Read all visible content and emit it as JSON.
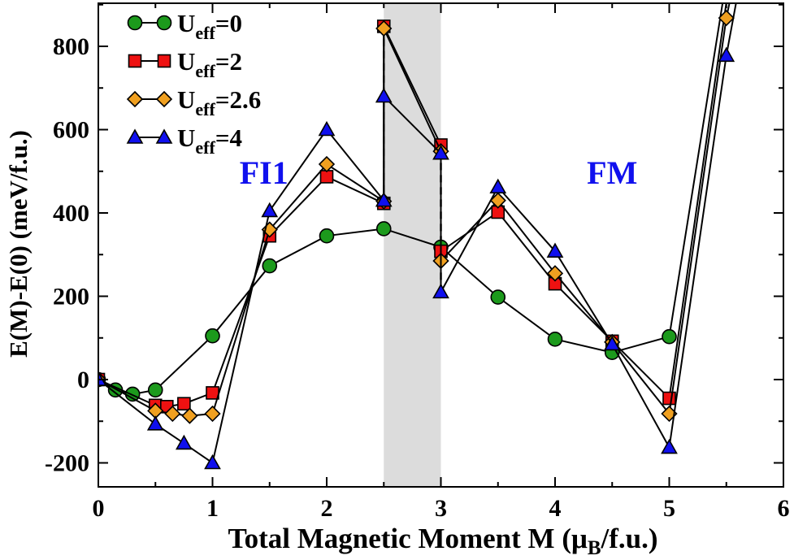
{
  "chart_data": {
    "type": "line",
    "xlabel_main": "Total Magnetic Moment M (μ",
    "xlabel_sub": "B",
    "xlabel_tail": "/f.u.)",
    "ylabel": "E(M)-E(0) (meV/f.u.)",
    "xlim": [
      0,
      6
    ],
    "ylim": [
      -250,
      900
    ],
    "xticks": [
      "0",
      "1",
      "2",
      "3",
      "4",
      "5",
      "6"
    ],
    "yticks": [
      "-200",
      "0",
      "200",
      "400",
      "600",
      "800"
    ],
    "shaded_band": [
      2.5,
      3.0
    ],
    "dashed_lines": [
      {
        "x": 2.5,
        "y": [
          420,
          845
        ]
      },
      {
        "x": 3.0,
        "y": [
          210,
          565
        ]
      }
    ],
    "annotations": [
      {
        "text": "FI1",
        "x": 1.45,
        "y": 470,
        "color": "#1010ee"
      },
      {
        "text": "FM",
        "x": 4.5,
        "y": 470,
        "color": "#1010ee"
      }
    ],
    "series": [
      {
        "legend_main": "U",
        "legend_sub": "eff",
        "legend_tail": "=0",
        "marker": "circle",
        "color": "#1c9a1c",
        "points": [
          [
            0,
            0
          ],
          [
            0.15,
            -25
          ],
          [
            0.3,
            -35
          ],
          [
            0.5,
            -25
          ],
          [
            1,
            105
          ],
          [
            1.5,
            273
          ],
          [
            2,
            345
          ],
          [
            2.5,
            362
          ],
          [
            3,
            318
          ],
          [
            3.5,
            198
          ],
          [
            4,
            97
          ],
          [
            4.5,
            65
          ],
          [
            5,
            103
          ],
          [
            5.5,
            960
          ],
          [
            5.55,
            1000
          ]
        ]
      },
      {
        "legend_main": "U",
        "legend_sub": "eff",
        "legend_tail": "=2",
        "marker": "square",
        "color": "#ee1111",
        "points": [
          [
            0,
            0
          ],
          [
            0.5,
            -62
          ],
          [
            0.6,
            -65
          ],
          [
            0.75,
            -58
          ],
          [
            1,
            -32
          ],
          [
            1.5,
            345
          ],
          [
            2,
            487
          ],
          [
            2.5,
            423
          ],
          [
            2.5,
            848
          ],
          [
            3,
            563
          ],
          [
            3,
            308
          ],
          [
            3.5,
            402
          ],
          [
            4,
            230
          ],
          [
            4.5,
            92
          ],
          [
            5,
            -45
          ],
          [
            5.55,
            1000
          ]
        ]
      },
      {
        "legend_main": "U",
        "legend_sub": "eff",
        "legend_tail": "=2.6",
        "marker": "diamond",
        "color": "#f0a020",
        "points": [
          [
            0,
            0
          ],
          [
            0.5,
            -75
          ],
          [
            0.65,
            -82
          ],
          [
            0.8,
            -87
          ],
          [
            1,
            -82
          ],
          [
            1.5,
            360
          ],
          [
            2,
            517
          ],
          [
            2.5,
            428
          ],
          [
            2.5,
            843
          ],
          [
            3,
            548
          ],
          [
            3,
            285
          ],
          [
            3.5,
            430
          ],
          [
            4,
            255
          ],
          [
            4.5,
            90
          ],
          [
            5,
            -82
          ],
          [
            5.5,
            868
          ],
          [
            5.6,
            1000
          ]
        ]
      },
      {
        "legend_main": "U",
        "legend_sub": "eff",
        "legend_tail": "=4",
        "marker": "triangle",
        "color": "#1010ee",
        "points": [
          [
            0,
            0
          ],
          [
            0.5,
            -107
          ],
          [
            0.75,
            -153
          ],
          [
            1,
            -200
          ],
          [
            1.5,
            405
          ],
          [
            2,
            600
          ],
          [
            2.5,
            430
          ],
          [
            2.5,
            680
          ],
          [
            3,
            543
          ],
          [
            3,
            210
          ],
          [
            3.5,
            462
          ],
          [
            4,
            308
          ],
          [
            4.5,
            85
          ],
          [
            5,
            -163
          ],
          [
            5.5,
            778
          ],
          [
            5.65,
            1000
          ]
        ]
      }
    ]
  }
}
